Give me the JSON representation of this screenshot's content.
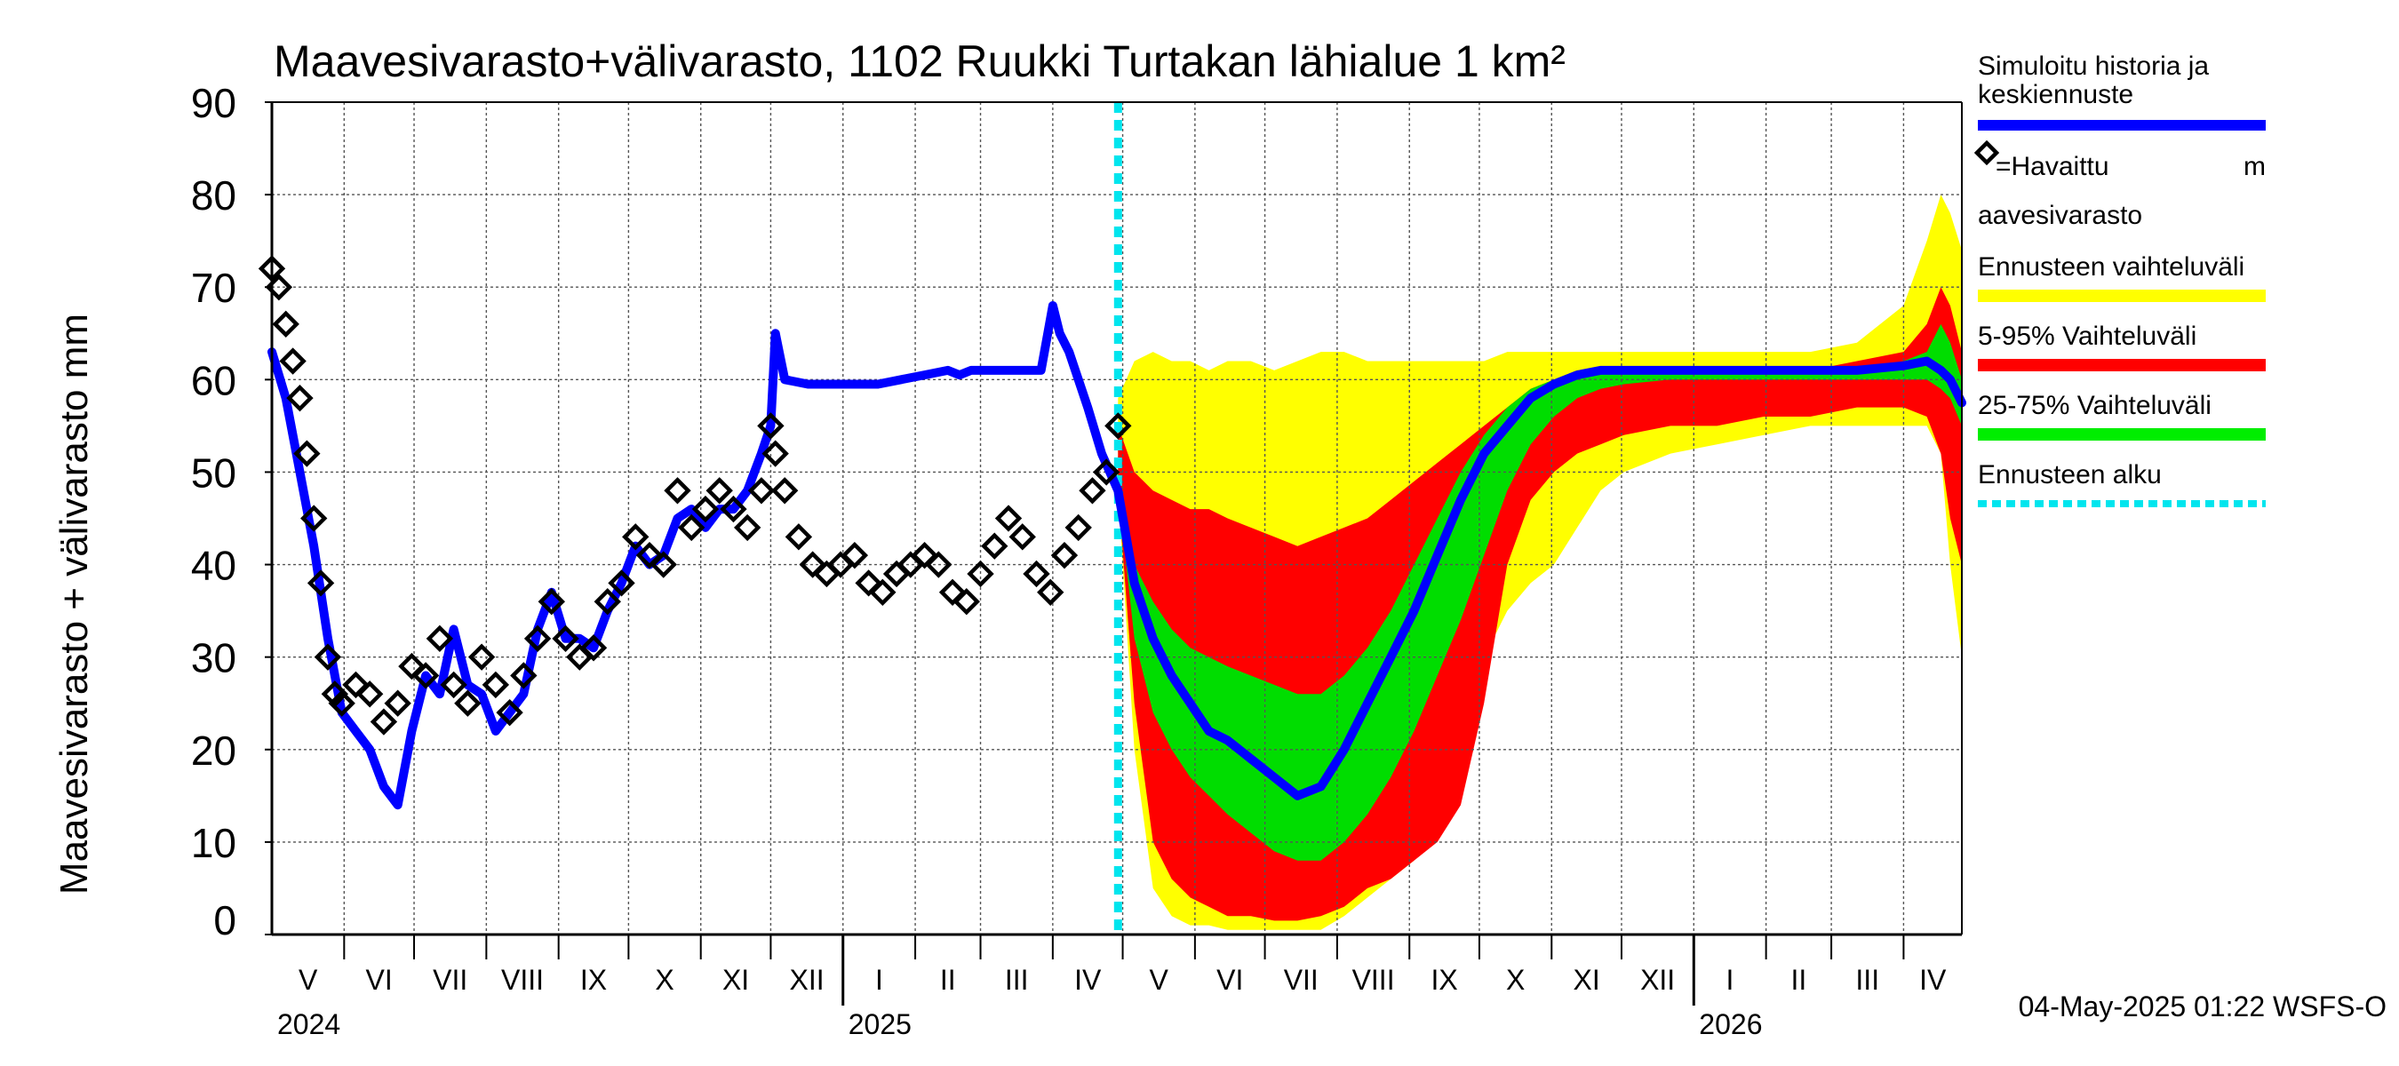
{
  "chart_data": {
    "type": "area",
    "title": "Maavesivarasto+välivarasto,  1102 Ruukki Turtakan lähialue 1 km²",
    "ylabel": "Maavesivarasto + välivarasto mm",
    "ylim": [
      0,
      90
    ],
    "y_ticks": [
      0,
      10,
      20,
      30,
      40,
      50,
      60,
      70,
      80,
      90
    ],
    "x_range_days": [
      0,
      725
    ],
    "forecast_start_day": 363,
    "grid": true,
    "months": [
      {
        "label": "V",
        "start": 0,
        "end": 31
      },
      {
        "label": "VI",
        "start": 31,
        "end": 61
      },
      {
        "label": "VII",
        "start": 61,
        "end": 92
      },
      {
        "label": "VIII",
        "start": 92,
        "end": 123
      },
      {
        "label": "IX",
        "start": 123,
        "end": 153
      },
      {
        "label": "X",
        "start": 153,
        "end": 184
      },
      {
        "label": "XI",
        "start": 184,
        "end": 214
      },
      {
        "label": "XII",
        "start": 214,
        "end": 245
      },
      {
        "label": "I",
        "start": 245,
        "end": 276
      },
      {
        "label": "II",
        "start": 276,
        "end": 304
      },
      {
        "label": "III",
        "start": 304,
        "end": 335
      },
      {
        "label": "IV",
        "start": 335,
        "end": 365
      },
      {
        "label": "V",
        "start": 365,
        "end": 396
      },
      {
        "label": "VI",
        "start": 396,
        "end": 426
      },
      {
        "label": "VII",
        "start": 426,
        "end": 457
      },
      {
        "label": "VIII",
        "start": 457,
        "end": 488
      },
      {
        "label": "IX",
        "start": 488,
        "end": 518
      },
      {
        "label": "X",
        "start": 518,
        "end": 549
      },
      {
        "label": "XI",
        "start": 549,
        "end": 579
      },
      {
        "label": "XII",
        "start": 579,
        "end": 610
      },
      {
        "label": "I",
        "start": 610,
        "end": 641
      },
      {
        "label": "II",
        "start": 641,
        "end": 669
      },
      {
        "label": "III",
        "start": 669,
        "end": 700
      },
      {
        "label": "IV",
        "start": 700,
        "end": 730
      }
    ],
    "years": [
      {
        "label": "2024",
        "day": 0
      },
      {
        "label": "2025",
        "day": 245
      },
      {
        "label": "2026",
        "day": 610
      }
    ],
    "series": [
      {
        "name": "Simuloitu historia ja keskiennuste",
        "color": "#0000ff",
        "x": [
          0,
          6,
          12,
          18,
          24,
          30,
          36,
          42,
          48,
          54,
          60,
          66,
          72,
          78,
          84,
          90,
          96,
          102,
          108,
          114,
          120,
          126,
          132,
          138,
          144,
          150,
          156,
          162,
          168,
          174,
          180,
          186,
          192,
          198,
          204,
          210,
          214,
          216,
          220,
          230,
          240,
          250,
          260,
          270,
          280,
          290,
          295,
          300,
          310,
          320,
          330,
          335,
          338,
          342,
          346,
          350,
          356,
          363,
          370,
          378,
          386,
          394,
          402,
          410,
          420,
          430,
          440,
          450,
          460,
          470,
          480,
          490,
          500,
          510,
          520,
          530,
          540,
          550,
          560,
          570,
          580,
          600,
          620,
          640,
          660,
          680,
          700,
          710,
          716,
          720,
          725
        ],
        "y": [
          63,
          58,
          50,
          42,
          32,
          24,
          22,
          20,
          16,
          14,
          22,
          28,
          26,
          33,
          27,
          26,
          22,
          24,
          26,
          33,
          37,
          32,
          32,
          31,
          35,
          38,
          42,
          40,
          41,
          45,
          46,
          44,
          46,
          46,
          48,
          52,
          55,
          65,
          60,
          59.5,
          59.5,
          59.5,
          59.5,
          60,
          60.5,
          61,
          60.5,
          61,
          61,
          61,
          61,
          68,
          65,
          63,
          60,
          57,
          52,
          48,
          38,
          32,
          28,
          25,
          22,
          21,
          19,
          17,
          15,
          16,
          20,
          25,
          30,
          35,
          41,
          47,
          52,
          55,
          58,
          59.5,
          60.5,
          61,
          61,
          61,
          61,
          61,
          61,
          61,
          61.5,
          62,
          61,
          60,
          57.5
        ]
      },
      {
        "name": "=Havaittu maavesivarasto",
        "color": "#000000",
        "x": [
          0,
          3,
          6,
          9,
          12,
          15,
          18,
          21,
          24,
          27,
          30,
          36,
          42,
          48,
          54,
          60,
          66,
          72,
          78,
          84,
          90,
          96,
          102,
          108,
          114,
          120,
          126,
          132,
          138,
          144,
          150,
          156,
          162,
          168,
          174,
          180,
          186,
          192,
          198,
          204,
          210,
          214,
          216,
          220,
          226,
          232,
          238,
          244,
          250,
          256,
          262,
          268,
          274,
          280,
          286,
          292,
          298,
          304,
          310,
          316,
          322,
          328,
          334,
          340,
          346,
          352,
          358,
          363
        ],
        "y": [
          72,
          70,
          66,
          62,
          58,
          52,
          45,
          38,
          30,
          26,
          25,
          27,
          26,
          23,
          25,
          29,
          28,
          32,
          27,
          25,
          30,
          27,
          24,
          28,
          32,
          36,
          32,
          30,
          31,
          36,
          38,
          43,
          41,
          40,
          48,
          44,
          46,
          48,
          46,
          44,
          48,
          55,
          52,
          48,
          43,
          40,
          39,
          40,
          41,
          38,
          37,
          39,
          40,
          41,
          40,
          37,
          36,
          39,
          42,
          45,
          43,
          39,
          37,
          41,
          44,
          48,
          50,
          55
        ]
      }
    ],
    "bands": [
      {
        "name": "Ennusteen vaihteluväli",
        "color": "#ffff00",
        "x": [
          363,
          370,
          378,
          386,
          394,
          402,
          410,
          420,
          430,
          440,
          450,
          460,
          470,
          480,
          490,
          500,
          510,
          520,
          530,
          540,
          550,
          560,
          570,
          580,
          600,
          620,
          640,
          660,
          680,
          700,
          710,
          716,
          720,
          725
        ],
        "upper": [
          58,
          62,
          63,
          62,
          62,
          61,
          62,
          62,
          61,
          62,
          63,
          63,
          62,
          62,
          62,
          62,
          62,
          62,
          63,
          63,
          63,
          63,
          63,
          63,
          63,
          63,
          63,
          63,
          64,
          68,
          75,
          80,
          78,
          74
        ],
        "lower": [
          48,
          20,
          5,
          2,
          1,
          1,
          0.5,
          0.5,
          0.5,
          0.5,
          0.5,
          2,
          4,
          6,
          8,
          15,
          25,
          30,
          35,
          38,
          40,
          44,
          48,
          50,
          52,
          53,
          54,
          55,
          55,
          55,
          55,
          52,
          40,
          30
        ]
      },
      {
        "name": "5-95% Vaihteluväli",
        "color": "#ff0000",
        "x": [
          363,
          370,
          378,
          386,
          394,
          402,
          410,
          420,
          430,
          440,
          450,
          460,
          470,
          480,
          490,
          500,
          510,
          520,
          530,
          540,
          550,
          560,
          570,
          580,
          600,
          620,
          640,
          660,
          680,
          700,
          710,
          716,
          720,
          725
        ],
        "upper": [
          55,
          50,
          48,
          47,
          46,
          46,
          45,
          44,
          43,
          42,
          43,
          44,
          45,
          47,
          49,
          51,
          53,
          55,
          57,
          59,
          60,
          61,
          61,
          61,
          61,
          61,
          61,
          61,
          62,
          63,
          66,
          70,
          68,
          63
        ],
        "lower": [
          48,
          25,
          10,
          6,
          4,
          3,
          2,
          2,
          1.5,
          1.5,
          2,
          3,
          5,
          6,
          8,
          10,
          14,
          25,
          40,
          47,
          50,
          52,
          53,
          54,
          55,
          55,
          56,
          56,
          57,
          57,
          56,
          52,
          45,
          40
        ]
      },
      {
        "name": "25-75% Vaihteluväli",
        "color": "#00dd00",
        "x": [
          363,
          370,
          378,
          386,
          394,
          402,
          410,
          420,
          430,
          440,
          450,
          460,
          470,
          480,
          490,
          500,
          510,
          520,
          530,
          540,
          550,
          560,
          570,
          580,
          600,
          620,
          640,
          660,
          680,
          700,
          710,
          716,
          720,
          725
        ],
        "upper": [
          50,
          40,
          36,
          33,
          31,
          30,
          29,
          28,
          27,
          26,
          26,
          28,
          31,
          35,
          40,
          45,
          50,
          54,
          57,
          59,
          60,
          61,
          61,
          61,
          61,
          61,
          61,
          61,
          61,
          62,
          63,
          66,
          64,
          60
        ],
        "lower": [
          48,
          32,
          24,
          20,
          17,
          15,
          13,
          11,
          9,
          8,
          8,
          10,
          13,
          17,
          22,
          28,
          34,
          41,
          48,
          53,
          56,
          58,
          59,
          59.5,
          60,
          60,
          60,
          60,
          60,
          60,
          60,
          59,
          58,
          55
        ]
      }
    ],
    "legend": [
      {
        "label": "Simuloitu historia ja keskiennuste",
        "color": "#0000ff",
        "kind": "line"
      },
      {
        "label": "=Havaittu maavesivarasto",
        "color": "#000000",
        "kind": "marker"
      },
      {
        "label": "Ennusteen vaihteluväli",
        "color": "#ffff00",
        "kind": "band"
      },
      {
        "label": "5-95% Vaihteluväli",
        "color": "#ff0000",
        "kind": "band"
      },
      {
        "label": "25-75% Vaihteluväli",
        "color": "#00ee00",
        "kind": "band"
      },
      {
        "label": "Ennusteen alku",
        "color": "#00e5ee",
        "kind": "dashed"
      }
    ],
    "legend_placement": "right",
    "footer": "04-May-2025 01:22 WSFS-O"
  }
}
